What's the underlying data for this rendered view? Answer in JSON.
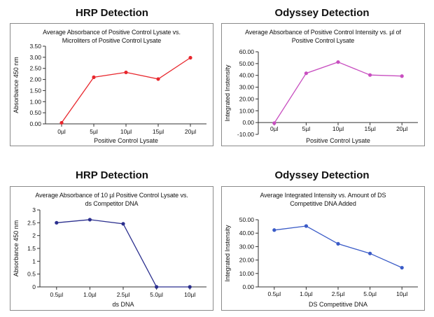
{
  "headings": [
    "HRP Detection",
    "Odyssey Detection",
    "HRP Detection",
    "Odyssey Detection"
  ],
  "chart_data": [
    {
      "type": "line",
      "title": "Average Absorbance of Positive Control Lysate vs. Microliters of Positive Control Lysate",
      "title_lines": [
        "Average Absorbance of Positive Control Lysate vs.",
        "Microliters of Positive Control Lysate"
      ],
      "xlabel": "Positive Control Lysate",
      "ylabel": "Absorbance 450 nm",
      "categories": [
        "0µl",
        "5µl",
        "10µl",
        "15µl",
        "20µl"
      ],
      "values": [
        0.05,
        2.1,
        2.32,
        2.02,
        2.98
      ],
      "ylim": [
        0,
        3.5
      ],
      "yticks": [
        "0.00",
        "0.50",
        "1.00",
        "1.50",
        "2.00",
        "2.50",
        "3.00",
        "3.50"
      ],
      "color": "#e8272d",
      "grid": false
    },
    {
      "type": "line",
      "title": "Average Absorbance of Positive Control Intensity vs. µl of Positive Control Lysate",
      "title_lines": [
        "Average Absorbance of Positive Control Intensity vs. µl of",
        "Positive Control Lysate"
      ],
      "xlabel": "Positive Control Lysate",
      "ylabel": "Integrated Instensity",
      "categories": [
        "0µl",
        "5µl",
        "10µl",
        "15µl",
        "20µl"
      ],
      "values": [
        -0.5,
        41.8,
        51.3,
        40.3,
        39.4
      ],
      "ylim": [
        -10,
        60
      ],
      "yticks": [
        "-10.00",
        "0.00",
        "10.00",
        "20.00",
        "30.00",
        "40.00",
        "50.00",
        "60.00"
      ],
      "color": "#c84fc0",
      "grid": false
    },
    {
      "type": "line",
      "title": "Average Absorbance of 10 µl Positive Control Lysate vs. ds Competitor DNA",
      "title_lines": [
        "Average Absorbance of 10 µl Positive Control Lysate vs.",
        "ds Competitor DNA"
      ],
      "xlabel": "ds DNA",
      "ylabel": "Absorbance 450 nm",
      "categories": [
        "0.5µl",
        "1.0µl",
        "2.5µl",
        "5.0µl",
        "10µl"
      ],
      "values": [
        2.5,
        2.62,
        2.46,
        0.0,
        0.0
      ],
      "ylim": [
        0,
        3
      ],
      "yticks": [
        "0",
        "0.5",
        "1",
        "1.5",
        "2",
        "2.5",
        "3"
      ],
      "color": "#2b2f8e",
      "grid": false
    },
    {
      "type": "line",
      "title": "Average Integrated Intensity vs. Amount of DS Competitive DNA Added",
      "title_lines": [
        "Average Integrated Intensity vs. Amount of DS",
        "Competitive DNA Added"
      ],
      "xlabel": "DS Competitive DNA",
      "ylabel": "Integrated Instensity",
      "categories": [
        "0.5µl",
        "1.0µl",
        "2.5µl",
        "5.0µl",
        "10µl"
      ],
      "values": [
        42.3,
        45.3,
        32.1,
        24.9,
        14.3
      ],
      "ylim": [
        0,
        50
      ],
      "yticks": [
        "0.00",
        "10.00",
        "20.00",
        "30.00",
        "40.00",
        "50.00"
      ],
      "color": "#3a5bc7",
      "grid": false
    }
  ]
}
